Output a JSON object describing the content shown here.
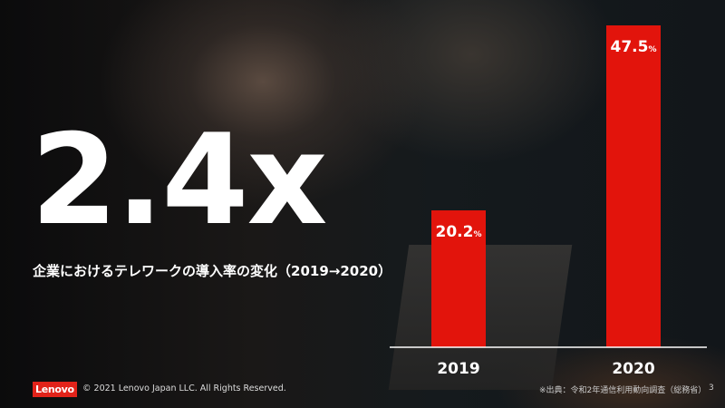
{
  "headline": "2.4x",
  "subtitle": "企業におけるテレワークの導入率の変化（2019→2020）",
  "chart_data": {
    "type": "bar",
    "categories": [
      "2019",
      "2020"
    ],
    "values": [
      20.2,
      47.5
    ],
    "data_labels": [
      "20.2",
      "47.5"
    ],
    "unit": "%",
    "ylim": [
      0,
      50
    ],
    "grid": false,
    "bar_color": "#e2140c"
  },
  "footer": {
    "logo": "Lenovo",
    "copyright": "© 2021 Lenovo Japan LLC. All Rights Reserved.",
    "source": "※出典：令和2年通信利用動向調査（総務省）",
    "page": "3"
  },
  "colors": {
    "brand": "#e2231a"
  }
}
